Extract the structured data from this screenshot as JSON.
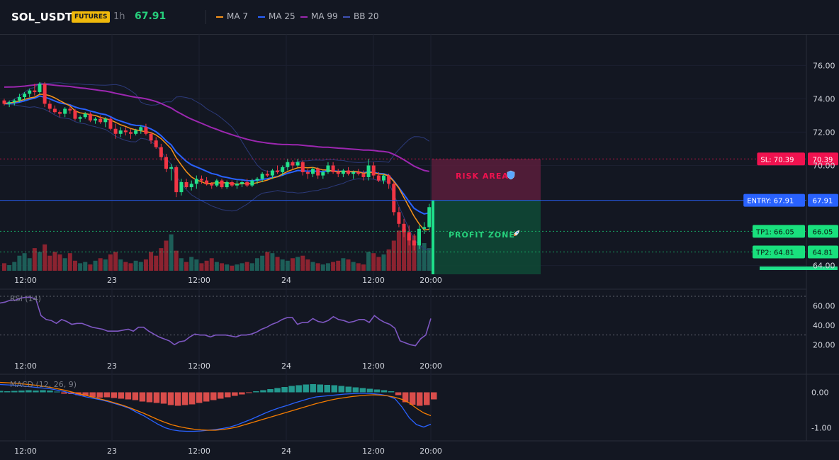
{
  "header": {
    "symbol": "SOL_USDT",
    "badge": "FUTURES",
    "timeframe": "1h",
    "last_price": "67.91",
    "indicators": [
      {
        "label": "MA 7",
        "color": "#f7931a"
      },
      {
        "label": "MA 25",
        "color": "#2962ff"
      },
      {
        "label": "MA 99",
        "color": "#9c27b0"
      },
      {
        "label": "BB 20",
        "color": "#3f51b5"
      }
    ]
  },
  "colors": {
    "up": "#26a69a",
    "up_bright": "#22e08a",
    "down": "#f23645",
    "volume_up": "#1d5e58",
    "volume_down": "#8b2330",
    "grid": "#1c2030",
    "background": "#131722"
  },
  "zones": {
    "risk_label": "RISK AREA",
    "profit_label": "PROFIT ZONE"
  },
  "levels": [
    {
      "name": "SL",
      "label": "SL: 70.39",
      "value": 70.39,
      "price_label": "70.39",
      "color": "#f0124f"
    },
    {
      "name": "ENTRY",
      "label": "ENTRY: 67.91",
      "value": 67.91,
      "price_label": "67.91",
      "color": "#2962ff"
    },
    {
      "name": "TP1",
      "label": "TP1: 66.05",
      "value": 66.05,
      "price_label": "66.05",
      "color": "#19e07d"
    },
    {
      "name": "TP2",
      "label": "TP2: 64.81",
      "value": 64.81,
      "price_label": "64.81",
      "color": "#19e07d"
    }
  ],
  "chart_data": [
    {
      "type": "candlestick",
      "name": "price",
      "ylim": [
        63.6,
        77.8
      ],
      "y_ticks": [
        "76.00",
        "74.00",
        "72.00",
        "70.00",
        "64.00"
      ],
      "x_ticks": [
        "12:00",
        "23",
        "12:00",
        "24",
        "12:00",
        "20:00"
      ],
      "candles": [
        [
          73.9,
          74.0,
          73.6,
          73.7
        ],
        [
          73.7,
          73.9,
          73.5,
          73.8
        ],
        [
          73.8,
          74.0,
          73.6,
          73.9
        ],
        [
          73.9,
          74.3,
          73.8,
          74.1
        ],
        [
          74.1,
          74.4,
          73.9,
          74.3
        ],
        [
          74.3,
          74.6,
          74.1,
          74.5
        ],
        [
          74.5,
          74.9,
          74.2,
          74.4
        ],
        [
          74.4,
          75.0,
          74.3,
          74.9
        ],
        [
          74.9,
          75.0,
          73.5,
          73.7
        ],
        [
          73.7,
          73.9,
          73.2,
          73.4
        ],
        [
          73.4,
          73.6,
          73.1,
          73.2
        ],
        [
          73.2,
          73.3,
          72.9,
          73.1
        ],
        [
          73.1,
          73.5,
          72.9,
          73.4
        ],
        [
          73.4,
          73.6,
          73.1,
          73.3
        ],
        [
          73.3,
          73.4,
          72.7,
          72.8
        ],
        [
          72.8,
          73.0,
          72.6,
          72.9
        ],
        [
          72.9,
          73.2,
          72.8,
          73.1
        ],
        [
          73.1,
          73.2,
          72.6,
          72.7
        ],
        [
          72.7,
          72.9,
          72.5,
          72.8
        ],
        [
          72.8,
          73.0,
          72.5,
          72.6
        ],
        [
          72.6,
          72.9,
          72.3,
          72.8
        ],
        [
          72.8,
          72.9,
          72.1,
          72.2
        ],
        [
          72.2,
          72.5,
          71.6,
          71.9
        ],
        [
          71.9,
          72.3,
          71.7,
          72.1
        ],
        [
          72.1,
          72.3,
          71.8,
          72.0
        ],
        [
          72.0,
          72.2,
          71.6,
          71.9
        ],
        [
          71.9,
          72.2,
          71.8,
          72.1
        ],
        [
          72.1,
          72.4,
          71.9,
          72.3
        ],
        [
          72.3,
          72.5,
          71.8,
          71.9
        ],
        [
          71.9,
          72.0,
          71.3,
          71.5
        ],
        [
          71.5,
          71.7,
          71.0,
          71.1
        ],
        [
          71.1,
          71.3,
          70.3,
          70.5
        ],
        [
          70.5,
          70.7,
          69.6,
          69.8
        ],
        [
          69.8,
          70.1,
          69.1,
          69.9
        ],
        [
          69.9,
          70.0,
          68.1,
          68.4
        ],
        [
          68.4,
          69.2,
          68.2,
          69.0
        ],
        [
          69.0,
          69.2,
          68.6,
          68.7
        ],
        [
          68.7,
          69.1,
          68.5,
          68.9
        ],
        [
          68.9,
          69.4,
          68.6,
          69.2
        ],
        [
          69.2,
          69.4,
          68.9,
          69.1
        ],
        [
          69.1,
          69.3,
          68.8,
          68.9
        ],
        [
          68.9,
          69.0,
          68.6,
          68.8
        ],
        [
          68.8,
          69.2,
          68.7,
          69.1
        ],
        [
          69.1,
          69.2,
          68.6,
          68.7
        ],
        [
          68.7,
          69.1,
          68.6,
          69.0
        ],
        [
          69.0,
          69.1,
          68.7,
          68.8
        ],
        [
          68.8,
          69.1,
          68.6,
          68.9
        ],
        [
          68.9,
          69.1,
          68.7,
          69.0
        ],
        [
          69.0,
          69.2,
          68.7,
          68.8
        ],
        [
          68.8,
          69.2,
          68.7,
          69.1
        ],
        [
          69.1,
          69.3,
          68.9,
          69.2
        ],
        [
          69.2,
          69.6,
          69.0,
          69.5
        ],
        [
          69.5,
          69.7,
          69.3,
          69.4
        ],
        [
          69.4,
          69.8,
          69.2,
          69.7
        ],
        [
          69.7,
          70.0,
          69.5,
          69.6
        ],
        [
          69.6,
          70.0,
          69.4,
          69.9
        ],
        [
          69.9,
          70.4,
          69.7,
          70.2
        ],
        [
          70.2,
          70.3,
          69.8,
          70.0
        ],
        [
          70.0,
          70.4,
          69.9,
          70.2
        ],
        [
          70.2,
          70.3,
          69.4,
          69.6
        ],
        [
          69.6,
          69.8,
          69.2,
          69.5
        ],
        [
          69.5,
          69.9,
          69.3,
          69.8
        ],
        [
          69.8,
          69.9,
          69.2,
          69.4
        ],
        [
          69.4,
          69.7,
          69.2,
          69.6
        ],
        [
          69.6,
          70.2,
          69.5,
          70.0
        ],
        [
          70.0,
          70.2,
          69.5,
          69.6
        ],
        [
          69.6,
          69.8,
          69.3,
          69.5
        ],
        [
          69.5,
          69.8,
          69.3,
          69.7
        ],
        [
          69.7,
          69.9,
          69.4,
          69.5
        ],
        [
          69.5,
          69.7,
          69.2,
          69.6
        ],
        [
          69.6,
          69.8,
          69.4,
          69.5
        ],
        [
          69.5,
          69.7,
          69.1,
          69.3
        ],
        [
          69.3,
          70.4,
          69.1,
          70.0
        ],
        [
          70.0,
          70.2,
          69.2,
          69.4
        ],
        [
          69.4,
          69.6,
          69.0,
          69.1
        ],
        [
          69.1,
          69.5,
          68.9,
          69.4
        ],
        [
          69.4,
          69.5,
          68.6,
          68.9
        ],
        [
          68.9,
          69.0,
          67.0,
          67.2
        ],
        [
          67.2,
          67.5,
          66.3,
          66.5
        ],
        [
          66.5,
          66.8,
          65.7,
          66.0
        ],
        [
          66.0,
          66.4,
          65.2,
          65.5
        ],
        [
          65.5,
          65.9,
          64.9,
          65.2
        ],
        [
          65.2,
          66.4,
          65.0,
          66.2
        ],
        [
          66.2,
          66.6,
          65.9,
          66.3
        ],
        [
          66.3,
          67.7,
          66.1,
          67.5
        ]
      ],
      "volume": [
        12,
        9,
        14,
        24,
        28,
        20,
        36,
        30,
        42,
        24,
        30,
        26,
        20,
        28,
        16,
        12,
        14,
        10,
        16,
        20,
        18,
        26,
        30,
        18,
        14,
        12,
        16,
        14,
        18,
        30,
        24,
        36,
        48,
        58,
        32,
        20,
        14,
        22,
        18,
        12,
        16,
        20,
        14,
        12,
        10,
        8,
        10,
        12,
        14,
        12,
        20,
        24,
        30,
        28,
        22,
        18,
        16,
        20,
        22,
        24,
        18,
        14,
        12,
        10,
        12,
        14,
        16,
        20,
        18,
        14,
        12,
        10,
        30,
        28,
        22,
        26,
        34,
        48,
        64,
        66,
        58,
        56,
        40,
        44,
        36
      ]
    },
    {
      "type": "line",
      "name": "RSI (14)",
      "ylim": [
        10,
        70
      ],
      "y_ticks": [
        "60.00",
        "40.00",
        "20.00"
      ],
      "x_ticks": [
        "12:00",
        "23",
        "12:00",
        "24",
        "12:00",
        "20:00"
      ],
      "values": [
        63,
        64,
        66,
        66,
        68,
        69,
        69,
        67,
        50,
        46,
        45,
        42,
        46,
        44,
        41,
        42,
        42,
        40,
        38,
        37,
        36,
        34,
        34,
        34,
        35,
        36,
        34,
        38,
        38,
        34,
        31,
        28,
        26,
        24,
        20,
        23,
        24,
        28,
        31,
        30,
        30,
        28,
        30,
        30,
        30,
        29,
        28,
        30,
        30,
        31,
        33,
        36,
        38,
        41,
        43,
        46,
        48,
        48,
        41,
        43,
        43,
        47,
        44,
        43,
        45,
        49,
        46,
        45,
        43,
        44,
        46,
        46,
        43,
        50,
        46,
        43,
        41,
        37,
        24,
        22,
        20,
        19,
        26,
        30,
        47
      ]
    },
    {
      "type": "line",
      "name": "MACD (12, 26, 9)",
      "ylim": [
        -1.25,
        0.35
      ],
      "y_ticks": [
        "0.00",
        "-1.00"
      ],
      "x_ticks": [
        "12:00",
        "23",
        "12:00",
        "24",
        "12:00",
        "20:00"
      ],
      "series": [
        {
          "name": "MACD",
          "color": "#2962ff",
          "values": [
            0.22,
            0.21,
            0.2,
            0.18,
            0.16,
            0.14,
            0.12,
            0.1,
            0.06,
            0.02,
            -0.03,
            -0.08,
            -0.13,
            -0.17,
            -0.21,
            -0.26,
            -0.32,
            -0.38,
            -0.45,
            -0.56,
            -0.66,
            -0.78,
            -0.9,
            -1.0,
            -1.06,
            -1.09,
            -1.1,
            -1.1,
            -1.09,
            -1.07,
            -1.05,
            -1.02,
            -0.98,
            -0.92,
            -0.84,
            -0.76,
            -0.67,
            -0.58,
            -0.5,
            -0.43,
            -0.37,
            -0.3,
            -0.24,
            -0.18,
            -0.13,
            -0.11,
            -0.09,
            -0.07,
            -0.05,
            -0.04,
            -0.03,
            -0.03,
            -0.04,
            -0.06,
            -0.1,
            -0.18,
            -0.42,
            -0.72,
            -0.91,
            -0.98,
            -0.9
          ]
        },
        {
          "name": "Signal",
          "color": "#f57c00",
          "values": [
            0.28,
            0.27,
            0.26,
            0.24,
            0.22,
            0.2,
            0.17,
            0.14,
            0.1,
            0.06,
            0.01,
            -0.04,
            -0.09,
            -0.14,
            -0.19,
            -0.24,
            -0.3,
            -0.36,
            -0.43,
            -0.51,
            -0.59,
            -0.68,
            -0.77,
            -0.85,
            -0.92,
            -0.97,
            -1.01,
            -1.04,
            -1.06,
            -1.07,
            -1.07,
            -1.05,
            -1.02,
            -0.98,
            -0.92,
            -0.86,
            -0.8,
            -0.74,
            -0.68,
            -0.62,
            -0.56,
            -0.5,
            -0.44,
            -0.38,
            -0.32,
            -0.27,
            -0.22,
            -0.18,
            -0.15,
            -0.12,
            -0.1,
            -0.08,
            -0.07,
            -0.08,
            -0.1,
            -0.14,
            -0.2,
            -0.3,
            -0.45,
            -0.58,
            -0.66
          ]
        },
        {
          "name": "Histogram",
          "values": [
            0.04,
            0.03,
            0.04,
            0.05,
            0.06,
            0.05,
            0.06,
            0.05,
            0.02,
            -0.04,
            -0.05,
            -0.08,
            -0.1,
            -0.13,
            -0.15,
            -0.14,
            -0.16,
            -0.18,
            -0.2,
            -0.22,
            -0.26,
            -0.28,
            -0.3,
            -0.32,
            -0.36,
            -0.38,
            -0.36,
            -0.34,
            -0.3,
            -0.26,
            -0.22,
            -0.18,
            -0.14,
            -0.1,
            -0.06,
            -0.02,
            0.03,
            0.06,
            0.09,
            0.12,
            0.15,
            0.18,
            0.2,
            0.22,
            0.23,
            0.22,
            0.21,
            0.2,
            0.18,
            0.16,
            0.14,
            0.12,
            0.1,
            0.08,
            0.06,
            0.03,
            -0.08,
            -0.28,
            -0.35,
            -0.38,
            -0.36,
            -0.2
          ]
        }
      ]
    }
  ]
}
